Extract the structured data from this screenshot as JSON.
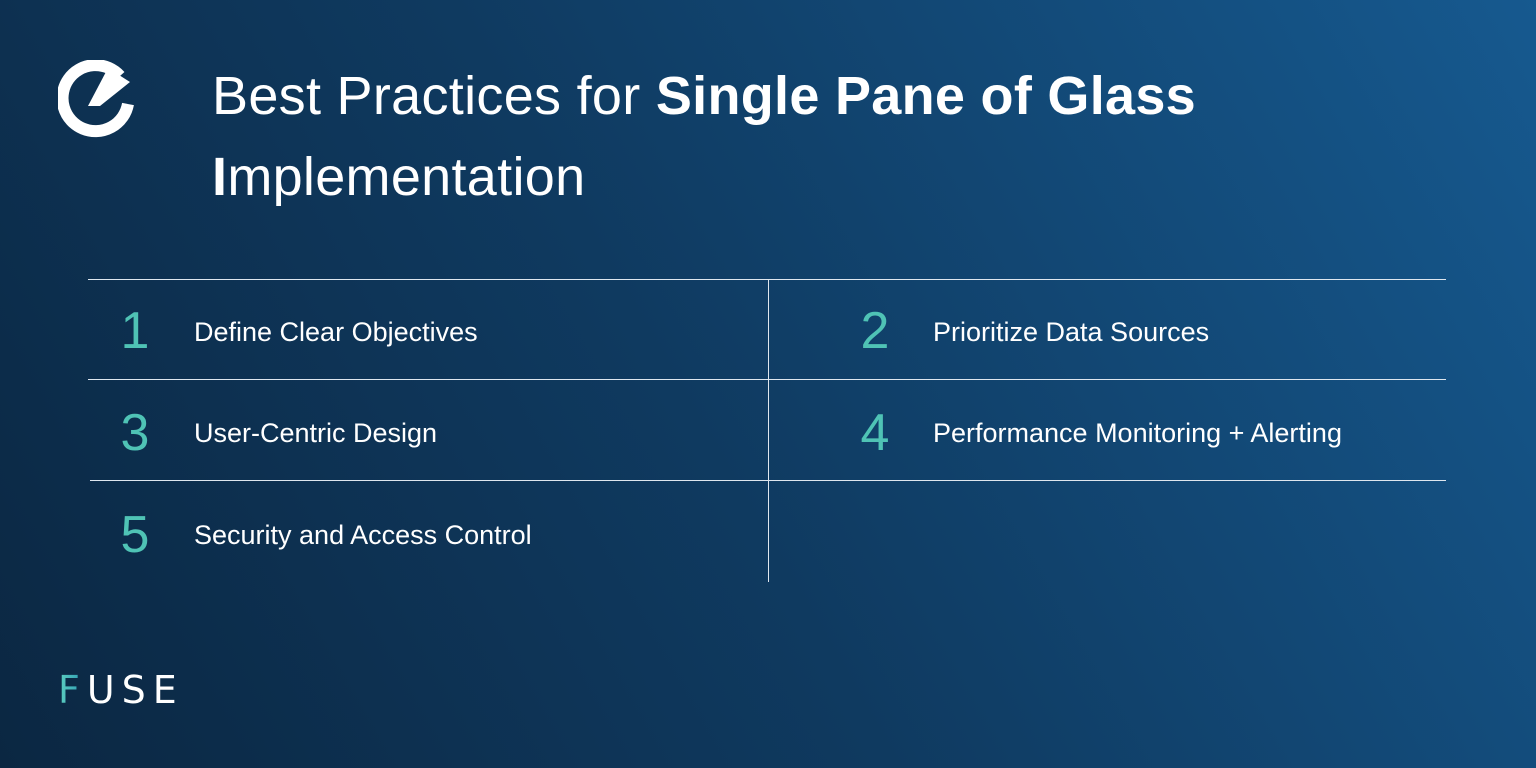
{
  "title": {
    "prefix": "Best Practices for ",
    "bold": "Single Pane of Glass",
    "bold_initial": "I",
    "rest": "mplementation"
  },
  "items": [
    {
      "number": "1",
      "label": "Define Clear Objectives"
    },
    {
      "number": "2",
      "label": "Prioritize Data Sources"
    },
    {
      "number": "3",
      "label": "User-Centric Design"
    },
    {
      "number": "4",
      "label": "Performance Monitoring + Alerting"
    },
    {
      "number": "5",
      "label": "Security and Access Control"
    }
  ],
  "brand": {
    "name": "FUSE",
    "accent": "#4fc3b5",
    "background": "#0f3a60"
  }
}
